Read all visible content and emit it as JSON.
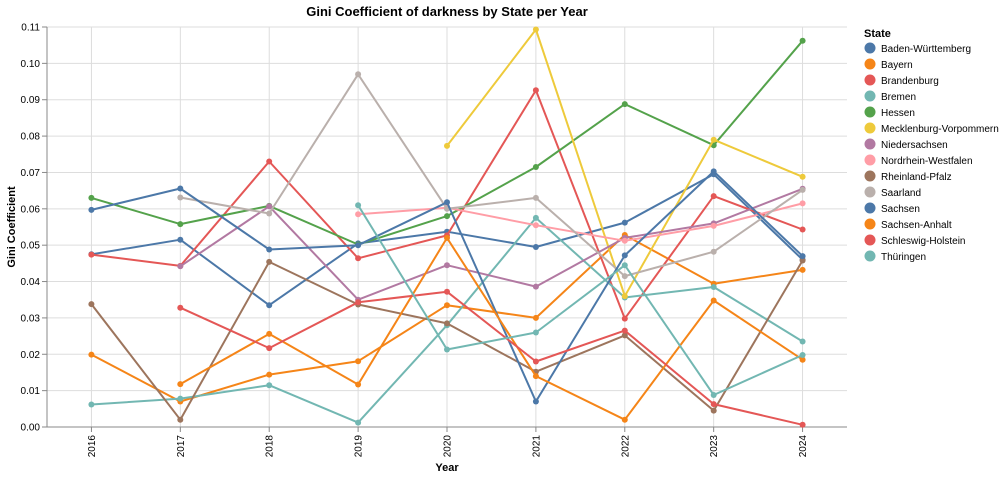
{
  "chart_data": {
    "type": "line",
    "title": "Gini Coefficient of darkness by State per Year",
    "xlabel": "Year",
    "ylabel": "Gini Coefficient",
    "x": [
      2016,
      2017,
      2018,
      2019,
      2020,
      2021,
      2022,
      2023,
      2024
    ],
    "ylim": [
      0,
      0.11
    ],
    "yticks": [
      "0.00",
      "0.01",
      "0.02",
      "0.03",
      "0.04",
      "0.05",
      "0.06",
      "0.07",
      "0.08",
      "0.09",
      "0.10",
      "0.11"
    ],
    "grid": true,
    "legend_title": "State",
    "legend_position": "right",
    "series": [
      {
        "name": "Baden-Württemberg",
        "color": "#4c78a8",
        "values": [
          0.0475,
          0.0515,
          0.0335,
          0.0505,
          0.0537,
          0.0495,
          0.0562,
          0.0695,
          0.046
        ]
      },
      {
        "name": "Bayern",
        "color": "#f58518",
        "values": [
          0.0199,
          0.007,
          0.0144,
          0.0181,
          0.0335,
          0.03,
          0.0528,
          0.0394,
          0.0432
        ]
      },
      {
        "name": "Brandenburg",
        "color": "#e45756",
        "values": [
          0.0474,
          0.0443,
          0.073,
          0.0464,
          0.0527,
          0.0926,
          0.0298,
          0.0635,
          0.0543
        ]
      },
      {
        "name": "Bremen",
        "color": "#72b7b2",
        "values": [
          0.0062,
          0.0078,
          0.0115,
          0.0012,
          0.028,
          0.0575,
          0.0356,
          0.0385,
          0.0235
        ]
      },
      {
        "name": "Hessen",
        "color": "#54a24b",
        "values": [
          0.063,
          0.0558,
          0.0608,
          0.0502,
          0.058,
          0.0715,
          0.0888,
          0.0775,
          0.1062
        ]
      },
      {
        "name": "Mecklenburg-Vorpommern",
        "color": "#eeca3b",
        "values": [
          null,
          null,
          null,
          null,
          0.0773,
          0.1093,
          0.036,
          0.079,
          0.0688
        ]
      },
      {
        "name": "Niedersachsen",
        "color": "#b279a2",
        "values": [
          null,
          0.0442,
          0.0607,
          0.035,
          0.0445,
          0.0386,
          0.052,
          0.056,
          0.0655
        ]
      },
      {
        "name": "Nordrhein-Westfalen",
        "color": "#ff9da6",
        "values": [
          null,
          null,
          null,
          0.0585,
          0.0603,
          0.0555,
          0.0512,
          0.0553,
          0.0615
        ]
      },
      {
        "name": "Rheinland-Pfalz",
        "color": "#9d755d",
        "values": [
          0.0338,
          0.002,
          0.0454,
          0.0337,
          0.0285,
          0.0152,
          0.0252,
          0.0045,
          0.0458
        ]
      },
      {
        "name": "Saarland",
        "color": "#bab0ac",
        "values": [
          null,
          0.0631,
          0.0587,
          0.097,
          0.06,
          0.063,
          0.0415,
          0.0482,
          0.0652
        ]
      },
      {
        "name": "Sachsen",
        "color": "#4c78a8",
        "values": [
          0.0597,
          0.0656,
          0.0488,
          0.05,
          0.0618,
          0.007,
          0.0472,
          0.0703,
          0.047
        ]
      },
      {
        "name": "Sachsen-Anhalt",
        "color": "#f58518",
        "values": [
          null,
          0.0118,
          0.0256,
          0.0117,
          0.052,
          0.014,
          0.002,
          0.0348,
          0.0185
        ]
      },
      {
        "name": "Schleswig-Holstein",
        "color": "#e45756",
        "values": [
          null,
          0.0328,
          0.0217,
          0.0343,
          0.0372,
          0.018,
          0.0265,
          0.0063,
          0.0006
        ]
      },
      {
        "name": "Thüringen",
        "color": "#72b7b2",
        "values": [
          null,
          null,
          null,
          0.061,
          0.0213,
          0.026,
          0.0445,
          0.0088,
          0.0198
        ]
      }
    ]
  }
}
